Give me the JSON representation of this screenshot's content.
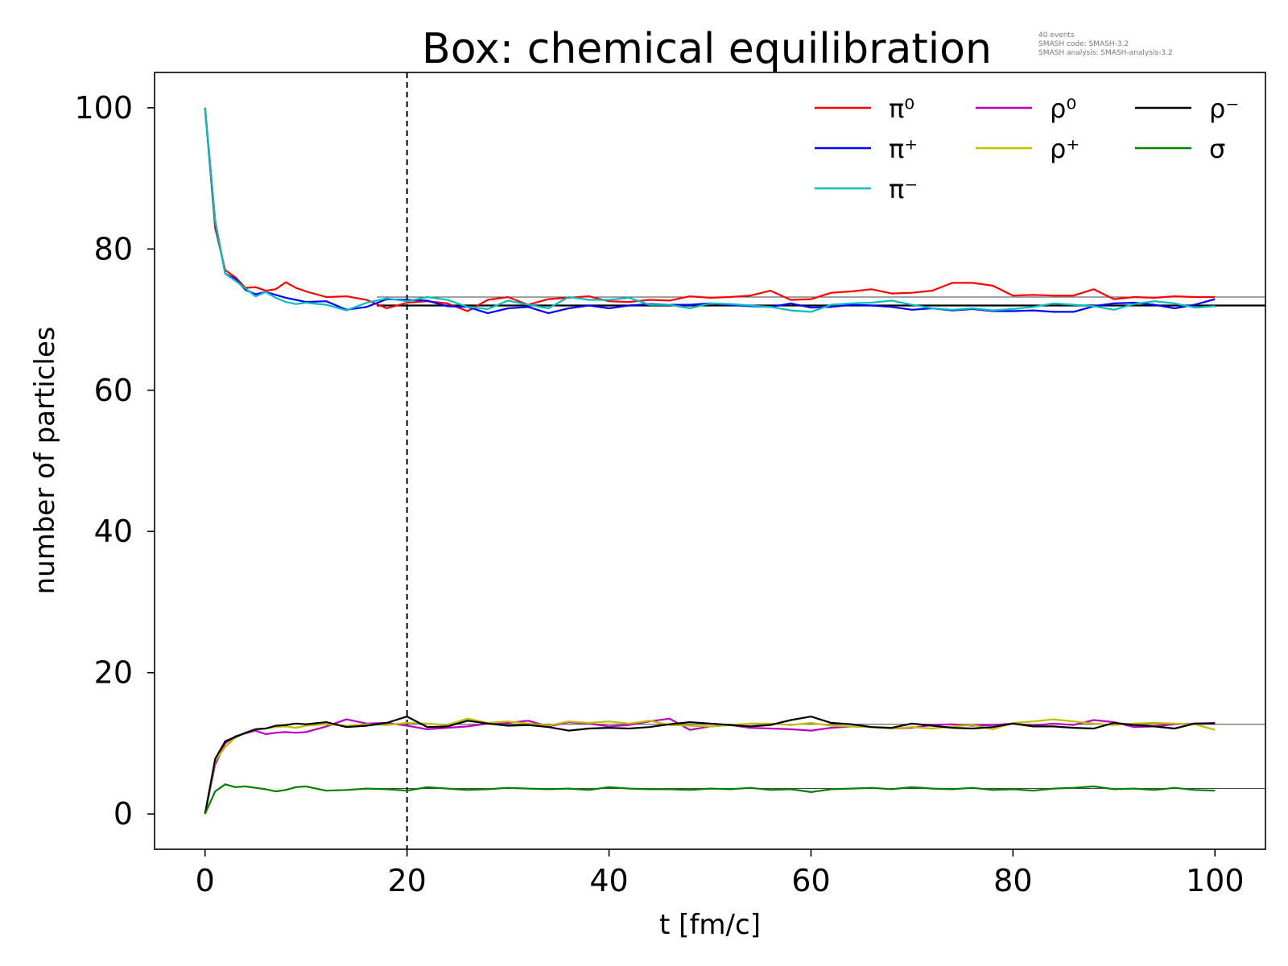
{
  "chart_data": {
    "type": "line",
    "title": "Box: chemical equilibration",
    "xlabel": "t [fm/c]",
    "ylabel": "number of particles",
    "xlim": [
      -5,
      105
    ],
    "ylim": [
      -5,
      105
    ],
    "xticks": [
      0,
      20,
      40,
      60,
      80,
      100
    ],
    "yticks": [
      0,
      20,
      40,
      60,
      80,
      100
    ],
    "grid": false,
    "legend_placement": "top-right",
    "vline": {
      "x": 20,
      "style": "dashed"
    },
    "info": {
      "line1": "40 events",
      "line2": "SMASH code:      SMASH-3.2",
      "line3": "SMASH analysis:  SMASH-analysis-3.2"
    },
    "reference_lines": [
      {
        "y": 73.2,
        "x_from": 17,
        "x_to": 105,
        "color": "#444444"
      },
      {
        "y": 72.0,
        "x_from": 17,
        "x_to": 105,
        "color": "#000000"
      },
      {
        "y": 12.7,
        "x_from": 17,
        "x_to": 105,
        "color": "#444444"
      },
      {
        "y": 3.6,
        "x_from": 17,
        "x_to": 105,
        "color": "#444444"
      }
    ],
    "series": [
      {
        "name": "π⁰",
        "color": "#ff0000",
        "x": [
          0,
          1,
          2,
          3,
          4,
          5,
          6,
          7,
          8,
          9,
          10,
          12,
          14,
          16,
          18,
          20,
          22,
          24,
          26,
          28,
          30,
          32,
          34,
          36,
          38,
          40,
          42,
          44,
          46,
          48,
          50,
          52,
          54,
          56,
          58,
          60,
          62,
          64,
          66,
          68,
          70,
          72,
          74,
          76,
          78,
          80,
          82,
          84,
          86,
          88,
          90,
          92,
          94,
          96,
          98,
          100
        ],
        "y": [
          100,
          83,
          77,
          76,
          74.5,
          74.6,
          74.1,
          74.3,
          75.3,
          74.5,
          74,
          73.2,
          73.3,
          72.8,
          71.6,
          72.4,
          72.6,
          72.3,
          71.2,
          72.8,
          73.2,
          72.1,
          72.9,
          73.1,
          73.3,
          72.6,
          72.5,
          72.8,
          72.7,
          73.3,
          73.1,
          73.2,
          73.4,
          74.1,
          72.8,
          72.9,
          73.8,
          74,
          74.3,
          73.7,
          73.8,
          74.1,
          75.2,
          75.2,
          74.8,
          73.4,
          73.5,
          73.4,
          73.4,
          74.3,
          72.9,
          73.2,
          73.1,
          73.3,
          73.2,
          73.2
        ]
      },
      {
        "name": "π⁺",
        "color": "#0000ff",
        "x": [
          0,
          1,
          2,
          3,
          4,
          5,
          6,
          7,
          8,
          9,
          10,
          12,
          14,
          16,
          18,
          20,
          22,
          24,
          26,
          28,
          30,
          32,
          34,
          36,
          38,
          40,
          42,
          44,
          46,
          48,
          50,
          52,
          54,
          56,
          58,
          60,
          62,
          64,
          66,
          68,
          70,
          72,
          74,
          76,
          78,
          80,
          82,
          84,
          86,
          88,
          90,
          92,
          94,
          96,
          98,
          100
        ],
        "y": [
          100,
          84,
          76.5,
          75.8,
          74.2,
          73.6,
          73.9,
          73.5,
          73.1,
          72.8,
          72.5,
          72.6,
          71.4,
          71.8,
          72.9,
          72.8,
          72.7,
          71.9,
          71.8,
          70.9,
          71.6,
          71.8,
          70.9,
          71.6,
          72,
          71.6,
          72,
          72.2,
          72.1,
          72.1,
          72.3,
          72.1,
          71.9,
          71.8,
          72.3,
          71.7,
          71.8,
          72.1,
          72,
          71.8,
          71.4,
          71.6,
          71.3,
          71.5,
          71.2,
          71.2,
          71.3,
          71.1,
          71.1,
          71.9,
          72.3,
          72.4,
          72.1,
          71.6,
          72.1,
          72.9
        ]
      },
      {
        "name": "π⁻",
        "color": "#00bfbf",
        "x": [
          0,
          1,
          2,
          3,
          4,
          5,
          6,
          7,
          8,
          9,
          10,
          12,
          14,
          16,
          18,
          20,
          22,
          24,
          26,
          28,
          30,
          32,
          34,
          36,
          38,
          40,
          42,
          44,
          46,
          48,
          50,
          52,
          54,
          56,
          58,
          60,
          62,
          64,
          66,
          68,
          70,
          72,
          74,
          76,
          78,
          80,
          82,
          84,
          86,
          88,
          90,
          92,
          94,
          96,
          98,
          100
        ],
        "y": [
          100,
          84,
          76.5,
          75.5,
          74.4,
          73.3,
          73.9,
          73.1,
          72.5,
          72.2,
          72.4,
          72.1,
          71.3,
          72.4,
          73,
          72.6,
          73.2,
          72.8,
          71.8,
          71.5,
          72.7,
          72.1,
          71.6,
          73.2,
          72.8,
          72.8,
          73.1,
          72.1,
          72.1,
          71.6,
          72.3,
          72.2,
          72,
          71.8,
          71.3,
          71.1,
          72.1,
          72.3,
          72.4,
          72.7,
          72.1,
          71.6,
          71.4,
          71.6,
          71.3,
          71.5,
          71.8,
          72.3,
          72.1,
          71.9,
          71.4,
          72.2,
          72.6,
          72.3,
          71.7,
          71.9
        ]
      },
      {
        "name": "ρ⁰",
        "color": "#bf00bf",
        "x": [
          0,
          1,
          2,
          3,
          4,
          5,
          6,
          7,
          8,
          9,
          10,
          12,
          14,
          16,
          18,
          20,
          22,
          24,
          26,
          28,
          30,
          32,
          34,
          36,
          38,
          40,
          42,
          44,
          46,
          48,
          50,
          52,
          54,
          56,
          58,
          60,
          62,
          64,
          66,
          68,
          70,
          72,
          74,
          76,
          78,
          80,
          82,
          84,
          86,
          88,
          90,
          92,
          94,
          96,
          98,
          100
        ],
        "y": [
          0,
          7,
          10,
          11,
          11.4,
          11.8,
          11.3,
          11.5,
          11.6,
          11.5,
          11.6,
          12.4,
          13.4,
          12.8,
          12.9,
          12.5,
          12,
          12.2,
          12.4,
          12.8,
          12.9,
          13.2,
          12.4,
          13,
          12.8,
          12.4,
          12.6,
          13.1,
          13.5,
          11.9,
          12.4,
          12.6,
          12.2,
          12.1,
          12,
          11.8,
          12.2,
          12.4,
          12.3,
          12.1,
          12.2,
          12.6,
          12.7,
          12.5,
          12.6,
          12.8,
          12.5,
          12.8,
          12.6,
          13.3,
          13,
          12.3,
          12.4,
          12.7,
          12.8,
          12.9
        ]
      },
      {
        "name": "ρ⁺",
        "color": "#bfbf00",
        "x": [
          0,
          1,
          2,
          3,
          4,
          5,
          6,
          7,
          8,
          9,
          10,
          12,
          14,
          16,
          18,
          20,
          22,
          24,
          26,
          28,
          30,
          32,
          34,
          36,
          38,
          40,
          42,
          44,
          46,
          48,
          50,
          52,
          54,
          56,
          58,
          60,
          62,
          64,
          66,
          68,
          70,
          72,
          74,
          76,
          78,
          80,
          82,
          84,
          86,
          88,
          90,
          92,
          94,
          96,
          98,
          100
        ],
        "y": [
          0,
          7.5,
          9.5,
          10.8,
          11.5,
          12,
          12.1,
          12.3,
          12.4,
          12.2,
          12.5,
          12.7,
          12.5,
          12.7,
          12.6,
          12.9,
          12.8,
          12.6,
          13.5,
          12.9,
          13.1,
          12.8,
          12.5,
          13.1,
          12.9,
          13.1,
          12.8,
          13.2,
          12.6,
          12.5,
          12.4,
          12.6,
          12.8,
          12.8,
          12.6,
          12.9,
          12.5,
          12.4,
          12.3,
          12.1,
          12.3,
          12.1,
          12.4,
          12.6,
          12,
          12.9,
          13.1,
          13.4,
          13.1,
          12.8,
          12.6,
          12.8,
          12.9,
          12.8,
          12.7,
          11.9
        ]
      },
      {
        "name": "ρ⁻",
        "color": "#000000",
        "x": [
          0,
          1,
          2,
          3,
          4,
          5,
          6,
          7,
          8,
          9,
          10,
          12,
          14,
          16,
          18,
          20,
          22,
          24,
          26,
          28,
          30,
          32,
          34,
          36,
          38,
          40,
          42,
          44,
          46,
          48,
          50,
          52,
          54,
          56,
          58,
          60,
          62,
          64,
          66,
          68,
          70,
          72,
          74,
          76,
          78,
          80,
          82,
          84,
          86,
          88,
          90,
          92,
          94,
          96,
          98,
          100
        ],
        "y": [
          0,
          7.8,
          10.3,
          10.9,
          11.5,
          12,
          12.1,
          12.5,
          12.6,
          12.8,
          12.7,
          13,
          12.3,
          12.5,
          12.9,
          13.8,
          12.3,
          12.4,
          13.2,
          12.8,
          12.5,
          12.6,
          12.3,
          11.8,
          12.1,
          12.2,
          12.1,
          12.3,
          12.7,
          13,
          12.8,
          12.6,
          12.4,
          12.6,
          13.3,
          13.8,
          12.9,
          12.7,
          12.3,
          12.2,
          12.8,
          12.5,
          12.2,
          12.1,
          12.3,
          12.8,
          12.4,
          12.4,
          12.2,
          12.1,
          12.9,
          12.6,
          12.4,
          12.1,
          12.8,
          12.8
        ]
      },
      {
        "name": "σ",
        "color": "#008000",
        "x": [
          0,
          1,
          2,
          3,
          4,
          5,
          6,
          7,
          8,
          9,
          10,
          12,
          14,
          16,
          18,
          20,
          22,
          24,
          26,
          28,
          30,
          32,
          34,
          36,
          38,
          40,
          42,
          44,
          46,
          48,
          50,
          52,
          54,
          56,
          58,
          60,
          62,
          64,
          66,
          68,
          70,
          72,
          74,
          76,
          78,
          80,
          82,
          84,
          86,
          88,
          90,
          92,
          94,
          96,
          98,
          100
        ],
        "y": [
          0,
          3.2,
          4.2,
          3.8,
          3.9,
          3.7,
          3.5,
          3.2,
          3.4,
          3.8,
          3.9,
          3.3,
          3.4,
          3.6,
          3.5,
          3.3,
          3.8,
          3.6,
          3.4,
          3.5,
          3.7,
          3.6,
          3.5,
          3.6,
          3.4,
          3.8,
          3.6,
          3.5,
          3.5,
          3.4,
          3.6,
          3.5,
          3.7,
          3.4,
          3.5,
          3.1,
          3.5,
          3.6,
          3.7,
          3.5,
          3.8,
          3.6,
          3.5,
          3.7,
          3.4,
          3.5,
          3.3,
          3.6,
          3.7,
          3.9,
          3.5,
          3.6,
          3.4,
          3.7,
          3.4,
          3.3
        ]
      }
    ]
  }
}
